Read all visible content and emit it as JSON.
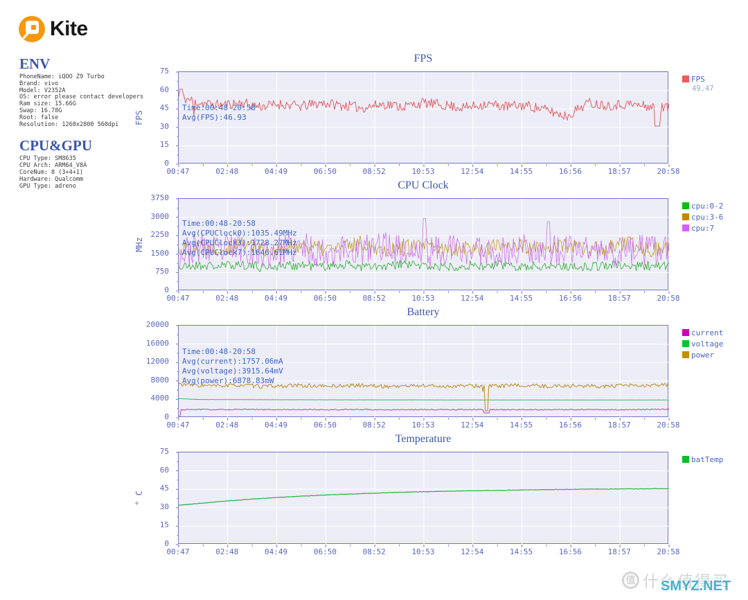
{
  "logo": {
    "text": "Kite"
  },
  "sidebar": {
    "env": {
      "heading": "ENV",
      "lines": [
        "PhoneName: iQOO Z9 Turbo",
        "Brand: vivo",
        "Model: V2352A",
        "OS: error please contact developers",
        "Ram size: 15.66G",
        "Swap: 16.78G",
        "Root: false",
        "Resolution: 1260x2800 560dpi"
      ]
    },
    "cpu_gpu": {
      "heading": "CPU&GPU",
      "lines": [
        "CPU Type: SM8635",
        "CPU Arch: ARM64_V8A",
        "CoreNum: 8 (3+4+1)",
        "Hardware: Qualcomm",
        "GPU Type: adreno"
      ]
    }
  },
  "colors": {
    "accent": "#3a56a8",
    "axis": "#5b66c0",
    "plot_bg": "#ededf8",
    "plot_border": "#7474cc",
    "annotation": "#3c64c8",
    "legend_label": "#4a63c0",
    "legend_value": "#97a6d8",
    "logo_orange": "#f6980e",
    "watermark_gray": "#d4d4d4",
    "watermark_teal": "#45b2cb"
  },
  "watermark": {
    "badge": "值",
    "site_name": "什么值得买",
    "overlay": "SMYZ.NET"
  },
  "chart_data": [
    {
      "type": "line",
      "title": "FPS",
      "ylabel": "FPS",
      "ylim": [
        0,
        75
      ],
      "yticks": [
        0,
        15,
        30,
        45,
        60,
        75
      ],
      "xticks": [
        "00:47",
        "02:48",
        "04:49",
        "06:50",
        "08:52",
        "10:53",
        "12:54",
        "14:55",
        "16:56",
        "18:57",
        "20:58"
      ],
      "annotation": [
        "Time:00:48-20:58",
        "Avg(FPS):46.93"
      ],
      "legend": [
        {
          "label": "FPS",
          "color": "#f05a5a",
          "value": "49.47"
        }
      ],
      "grid": true,
      "legend_position": "right",
      "series": [
        {
          "name": "FPS",
          "color": "#e06060",
          "width": 1,
          "seed": 11,
          "noise": 4.2,
          "clamp": [
            29,
            63
          ],
          "avg": 46.93,
          "anchors": [
            55,
            50,
            48,
            50,
            47,
            49,
            47,
            50,
            48,
            46,
            49,
            47,
            50,
            48,
            46,
            49,
            47,
            48,
            44,
            39,
            50,
            48,
            49,
            47,
            46
          ],
          "spikes": [
            {
              "x": 0.004,
              "v": 61,
              "w": 1
            },
            {
              "x": 0.03,
              "v": 39,
              "w": 0
            },
            {
              "x": 0.975,
              "v": 31,
              "w": 2
            }
          ]
        }
      ]
    },
    {
      "type": "line",
      "title": "CPU Clock",
      "ylabel": "MHz",
      "ylim": [
        0,
        3750
      ],
      "yticks": [
        0,
        750,
        1500,
        2250,
        3000,
        3750
      ],
      "xticks": [
        "00:47",
        "02:48",
        "04:49",
        "06:50",
        "08:52",
        "10:53",
        "12:54",
        "14:55",
        "16:56",
        "18:57",
        "20:58"
      ],
      "annotation": [
        "Time:00:48-20:58",
        "Avg(CPUClock0):1035.49MHz",
        "Avg(CPUClock3):1728.27MHz",
        "Avg(CPUClock7):1646.61MHz"
      ],
      "legend": [
        {
          "label": "cpu:0-2",
          "color": "#0fbe0f"
        },
        {
          "label": "cpu:3-6",
          "color": "#c08a00"
        },
        {
          "label": "cpu:7",
          "color": "#d95fff"
        }
      ],
      "grid": true,
      "legend_position": "right",
      "series": [
        {
          "name": "cpu:0-2",
          "color": "#2aac2a",
          "width": 0.8,
          "seed": 21,
          "noise": 200,
          "clamp": [
            600,
            1950
          ],
          "avg": 1035.49,
          "anchors": [
            950,
            1050,
            1000,
            1100,
            980,
            1020,
            1060,
            990,
            1080,
            1000,
            950,
            1100,
            1020,
            980,
            1050,
            1000,
            1070,
            990,
            1040,
            1010,
            980,
            1060,
            1000,
            1030,
            990
          ]
        },
        {
          "name": "cpu:3-6",
          "color": "#c29b20",
          "width": 0.8,
          "seed": 22,
          "noise": 330,
          "clamp": [
            1330,
            2400
          ],
          "avg": 1728.27,
          "anchors": [
            1650,
            1850,
            1700,
            1950,
            1750,
            1650,
            1900,
            1700,
            1800,
            1950,
            1700,
            1750,
            1850,
            1650,
            1800,
            1700,
            1950,
            1750,
            1700,
            1850,
            1650,
            1750,
            1900,
            1700,
            1750
          ]
        },
        {
          "name": "cpu:7",
          "color": "#cb72ea",
          "width": 0.8,
          "seed": 23,
          "noise": 640,
          "clamp": [
            720,
            2380
          ],
          "avg": 1646.61,
          "anchors": [
            1500,
            1750,
            1600,
            1850,
            1500,
            1650,
            1800,
            1550,
            1700,
            1600,
            1900,
            1650,
            1500,
            1750,
            1600,
            1700,
            1550,
            1800,
            1650,
            1600,
            1750,
            1500,
            1700,
            1650,
            1600
          ],
          "spikes": [
            {
              "x": 0.5,
              "v": 2950,
              "w": 1
            },
            {
              "x": 0.755,
              "v": 2820,
              "w": 1
            }
          ]
        }
      ]
    },
    {
      "type": "line",
      "title": "Battery",
      "ylabel": "",
      "ylim": [
        0,
        20000
      ],
      "yticks": [
        0,
        4000,
        8000,
        12000,
        16000,
        20000
      ],
      "xticks": [
        "00:47",
        "02:48",
        "04:49",
        "06:50",
        "08:52",
        "10:53",
        "12:54",
        "14:55",
        "16:56",
        "18:57",
        "20:58"
      ],
      "annotation": [
        "Time:00:48-20:58",
        "Avg(current):1757.06mA",
        "Avg(voltage):3915.64mV",
        "Avg(power):6878.83mW"
      ],
      "legend": [
        {
          "label": "current",
          "color": "#cc00b4"
        },
        {
          "label": "voltage",
          "color": "#00c832"
        },
        {
          "label": "power",
          "color": "#c09000"
        }
      ],
      "grid": true,
      "legend_position": "right",
      "series": [
        {
          "name": "current",
          "color": "#c238b0",
          "width": 1,
          "seed": 31,
          "noise": 110,
          "clamp": [
            900,
            2400
          ],
          "avg": 1757.06,
          "anchors": [
            1750,
            1800,
            1760,
            1800,
            1780,
            1760,
            1800,
            1750,
            1780,
            1800,
            1750,
            1770,
            1790,
            1760,
            1800,
            1780,
            1750,
            1780,
            1760,
            1790,
            1770,
            1750,
            1780,
            1800,
            1850
          ],
          "spikes": [
            {
              "x": 0.0,
              "v": 250,
              "w": 1
            },
            {
              "x": 0.628,
              "v": 1050,
              "w": 2
            }
          ]
        },
        {
          "name": "voltage",
          "color": "#2cb24a",
          "width": 1,
          "seed": 32,
          "noise": 12,
          "avg": 3915.64,
          "anchors": [
            4150,
            3970,
            3950,
            3940,
            3930,
            3920,
            3915,
            3910,
            3905,
            3900,
            3900,
            3895,
            3895,
            3890,
            3890,
            3890,
            3885,
            3885,
            3885,
            3880,
            3880,
            3880,
            3880,
            3880,
            3880
          ]
        },
        {
          "name": "power",
          "color": "#b68e20",
          "width": 1,
          "seed": 33,
          "noise": 420,
          "clamp": [
            5700,
            8400
          ],
          "avg": 6878.83,
          "anchors": [
            7300,
            7000,
            6900,
            7100,
            6800,
            6900,
            7000,
            6850,
            6950,
            7050,
            6800,
            6900,
            7000,
            6800,
            6950,
            6900,
            6950,
            7000,
            6850,
            6950,
            6900,
            6800,
            7000,
            6900,
            7200
          ],
          "spikes": [
            {
              "x": 0.62,
              "v": 5700,
              "w": 0
            },
            {
              "x": 0.628,
              "v": 1500,
              "w": 1
            }
          ]
        }
      ]
    },
    {
      "type": "line",
      "title": "Temperature",
      "ylabel": "° C",
      "ylim": [
        0,
        75
      ],
      "yticks": [
        0,
        15,
        30,
        45,
        60,
        75
      ],
      "xticks": [
        "00:47",
        "02:48",
        "04:49",
        "06:50",
        "08:52",
        "10:53",
        "12:54",
        "14:55",
        "16:56",
        "18:57",
        "20:58"
      ],
      "legend": [
        {
          "label": "batTemp",
          "color": "#0abe28"
        }
      ],
      "grid": true,
      "legend_position": "right",
      "series": [
        {
          "name": "batTemp",
          "color": "#33b34a",
          "width": 1.3,
          "seed": 41,
          "noise": 0.15,
          "anchors": [
            32,
            33.5,
            35,
            36.3,
            37.5,
            38.5,
            39.4,
            40.2,
            40.9,
            41.5,
            42.1,
            42.6,
            43,
            43.4,
            43.7,
            44,
            44.3,
            44.5,
            44.7,
            44.9,
            45.1,
            45.2,
            45.3,
            45.4,
            45.5
          ]
        }
      ]
    }
  ]
}
